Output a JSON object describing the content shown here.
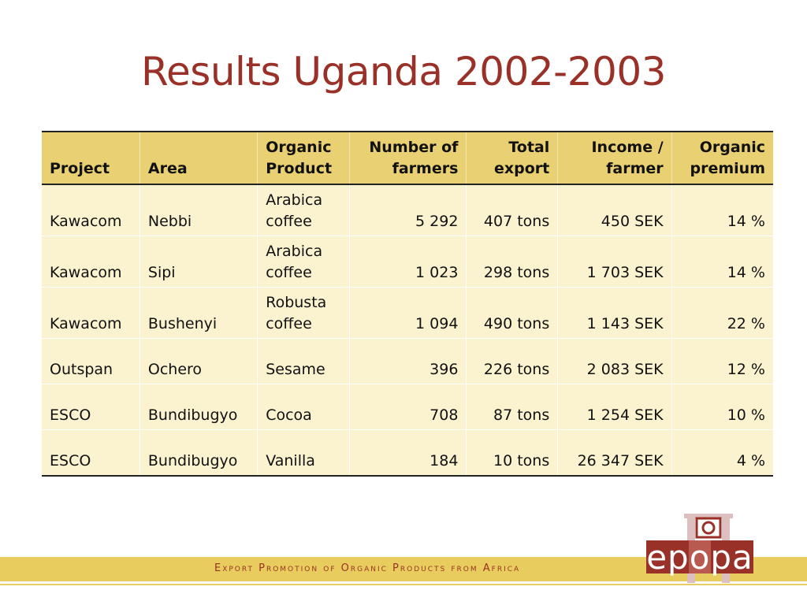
{
  "slide": {
    "title": "Results Uganda 2002-2003"
  },
  "table": {
    "headers": {
      "project": "Project",
      "area": "Area",
      "product_1": "Organic",
      "product_2": "Product",
      "farmers_1": "Number of",
      "farmers_2": "farmers",
      "export_1": "Total",
      "export_2": "export",
      "income_1": "Income /",
      "income_2": "farmer",
      "premium_1": "Organic",
      "premium_2": "premium"
    },
    "rows": [
      {
        "project": "Kawacom",
        "area": "Nebbi",
        "product_1": "Arabica",
        "product_2": "coffee",
        "farmers": "5 292",
        "export": "407 tons",
        "income": "450 SEK",
        "premium": "14 %"
      },
      {
        "project": "Kawacom",
        "area": "Sipi",
        "product_1": "Arabica",
        "product_2": "coffee",
        "farmers": "1 023",
        "export": "298 tons",
        "income": "1 703 SEK",
        "premium": "14 %"
      },
      {
        "project": "Kawacom",
        "area": "Bushenyi",
        "product_1": "Robusta",
        "product_2": "coffee",
        "farmers": "1 094",
        "export": "490 tons",
        "income": "1 143 SEK",
        "premium": "22 %"
      },
      {
        "project": "Outspan",
        "area": "Ochero",
        "product": "Sesame",
        "farmers": "396",
        "export": "226 tons",
        "income": "2 083 SEK",
        "premium": "12 %"
      },
      {
        "project": "ESCO",
        "area": "Bundibugyo",
        "product": "Cocoa",
        "farmers": "708",
        "export": "87 tons",
        "income": "1 254 SEK",
        "premium": "10 %"
      },
      {
        "project": "ESCO",
        "area": "Bundibugyo",
        "product": "Vanilla",
        "farmers": "184",
        "export": "10 tons",
        "income": "26 347 SEK",
        "premium": "4 %"
      }
    ]
  },
  "footer": {
    "tagline": "Export Promotion of Organic Products from Africa"
  },
  "logo": {
    "text": "epopa",
    "colors": {
      "dark": "#9a3128",
      "light": "#dcc0c0",
      "text": "#ffffff"
    }
  },
  "theme": {
    "accent": "#9a3128",
    "header_fill": "#e9d072",
    "row_fill": "#fbf2cf",
    "band": "#e8cd5e"
  }
}
